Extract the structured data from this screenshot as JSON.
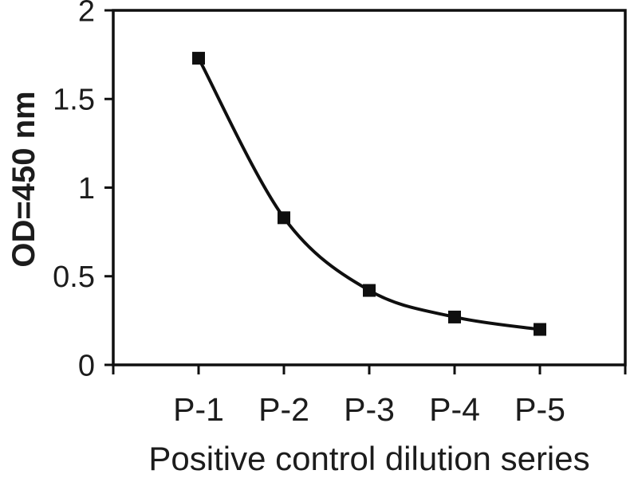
{
  "figure": {
    "background": "#ffffff",
    "text_color": "#1c1c1c"
  },
  "chart_data": {
    "type": "line",
    "title": "",
    "xlabel": "Positive control dilution series",
    "ylabel": "OD=450 nm",
    "categories": [
      "P-1",
      "P-2",
      "P-3",
      "P-4",
      "P-5"
    ],
    "values": [
      1.73,
      0.83,
      0.42,
      0.27,
      0.2
    ],
    "ylim": [
      0,
      2
    ],
    "yticks": {
      "values": [
        0,
        0.5,
        1,
        1.5,
        2
      ],
      "labels": [
        "0",
        "0.5",
        "1",
        "1.5",
        "2"
      ]
    },
    "grid": false,
    "legend": "none",
    "line_smooth": true,
    "marker": "filled-square",
    "line_color": "#0f0f0f",
    "marker_color": "#0f0f0f"
  }
}
